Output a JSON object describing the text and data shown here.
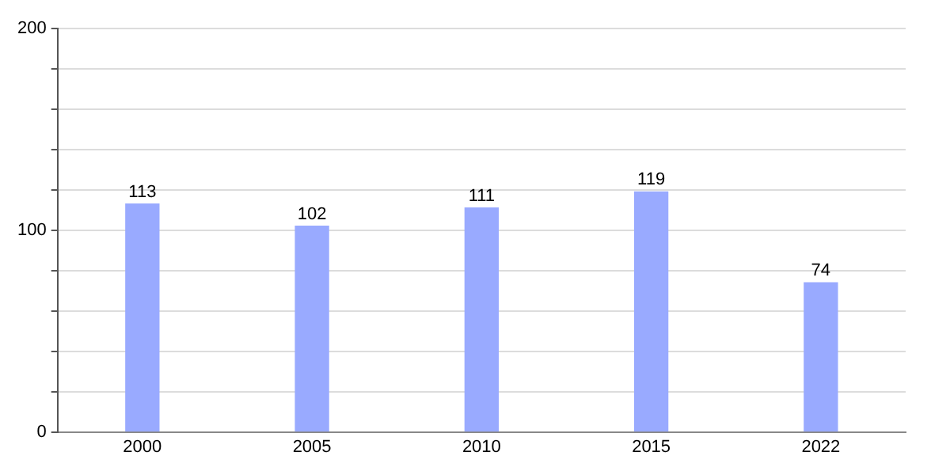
{
  "chart_data": {
    "type": "bar",
    "categories": [
      "2000",
      "2005",
      "2010",
      "2015",
      "2022"
    ],
    "values": [
      113,
      102,
      111,
      119,
      74
    ],
    "color": "#99aaff",
    "ylim": [
      0,
      200
    ],
    "yticks": [
      0,
      {
        "value": 20,
        "label": null
      },
      {
        "value": 40,
        "label": null
      },
      {
        "value": 60,
        "label": null
      },
      {
        "value": 80,
        "label": null
      },
      100,
      {
        "value": 120,
        "label": null
      },
      {
        "value": 140,
        "label": null
      },
      {
        "value": 160,
        "label": null
      },
      {
        "value": 180,
        "label": null
      },
      200
    ],
    "grid": "y",
    "data_labels": true
  }
}
